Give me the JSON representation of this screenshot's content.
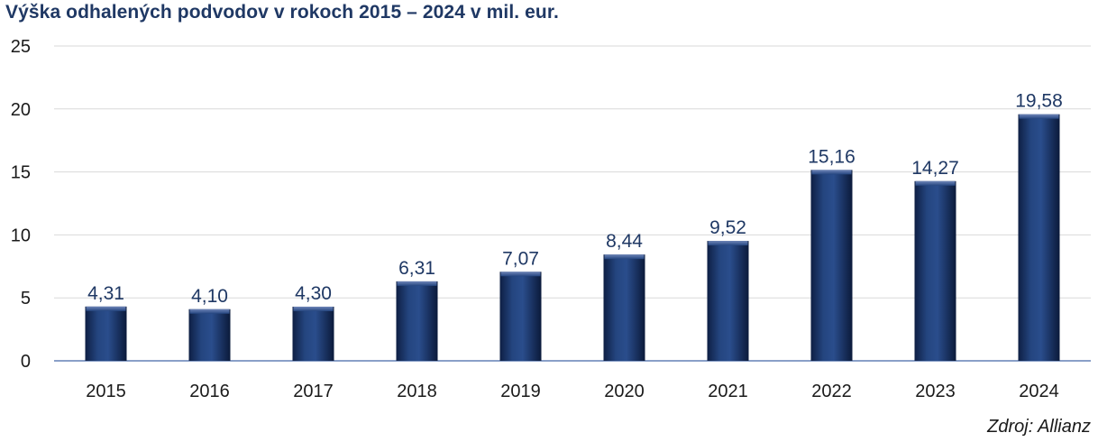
{
  "chart_data": {
    "type": "bar",
    "title": "Výška odhalených podvodov v rokoch 2015 – 2024 v mil. eur.",
    "categories": [
      "2015",
      "2016",
      "2017",
      "2018",
      "2019",
      "2020",
      "2021",
      "2022",
      "2023",
      "2024"
    ],
    "values": [
      4.31,
      4.1,
      4.3,
      6.31,
      7.07,
      8.44,
      9.52,
      15.16,
      14.27,
      19.58
    ],
    "value_labels": [
      "4,31",
      "4,10",
      "4,30",
      "6,31",
      "7,07",
      "8,44",
      "9,52",
      "15,16",
      "14,27",
      "19,58"
    ],
    "y_ticks": [
      "0",
      "5",
      "10",
      "15",
      "20",
      "25"
    ],
    "ylim": [
      0,
      25
    ],
    "grid": true,
    "legend": "none",
    "bar_color": "#1f3864",
    "source": "Zdroj: Allianz"
  }
}
